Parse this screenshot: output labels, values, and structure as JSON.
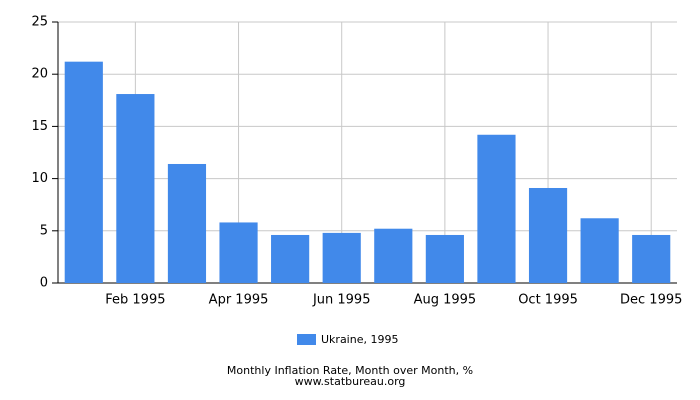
{
  "chart_data": {
    "type": "bar",
    "title": "Monthly Inflation Rate, Month over Month, %",
    "source": "www.statbureau.org",
    "categories": [
      null,
      "Feb 1995",
      null,
      "Apr 1995",
      null,
      "Jun 1995",
      null,
      "Aug 1995",
      null,
      "Oct 1995",
      null,
      "Dec 1995"
    ],
    "series": [
      {
        "name": "Ukraine, 1995",
        "color": "#4189ea",
        "values": [
          21.2,
          18.1,
          11.4,
          5.8,
          4.6,
          4.8,
          5.2,
          4.6,
          14.2,
          9.1,
          6.2,
          4.6
        ]
      }
    ],
    "ylim": [
      0,
      25
    ],
    "yticks": [
      0,
      5,
      10,
      15,
      20,
      25
    ],
    "grid": true
  }
}
